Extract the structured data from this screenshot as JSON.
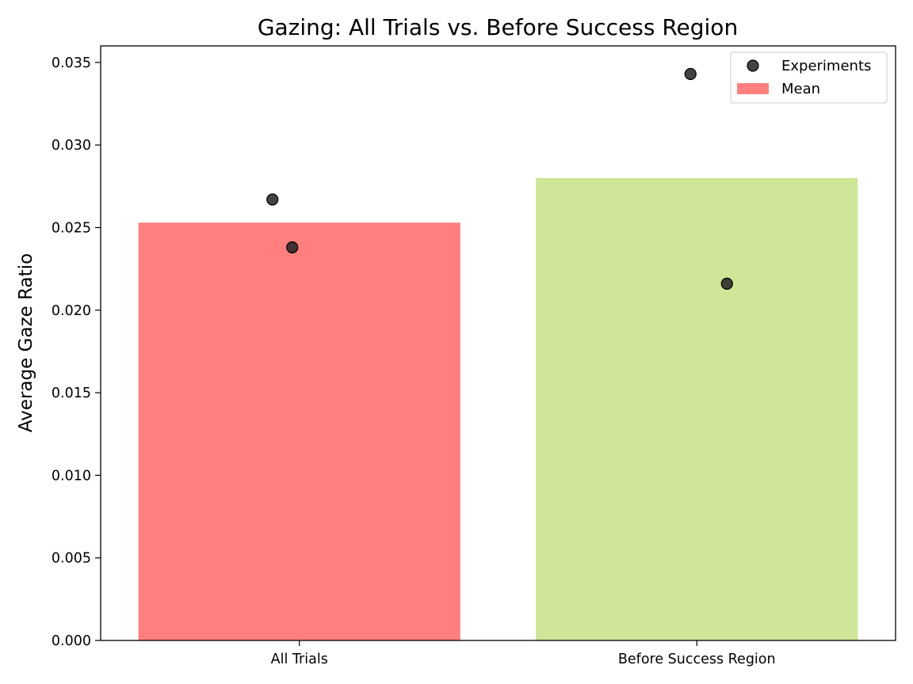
{
  "chart_data": {
    "type": "bar",
    "title": "Gazing: All Trials vs. Before Success Region",
    "xlabel": "",
    "ylabel": "Average Gaze Ratio",
    "categories": [
      "All Trials",
      "Before Success Region"
    ],
    "series": [
      {
        "name": "Mean",
        "values": [
          0.0253,
          0.028
        ]
      }
    ],
    "points": {
      "name": "Experiments",
      "values": [
        [
          0.0267,
          0.0238
        ],
        [
          0.0343,
          0.0216
        ]
      ]
    },
    "bar_colors": [
      "#ff7f7f",
      "#cfe597"
    ],
    "point_color": "#222222",
    "legend_mean_color": "#ff7f7f",
    "ylim": [
      0,
      0.036
    ],
    "yticks": [
      "0.000",
      "0.005",
      "0.010",
      "0.015",
      "0.020",
      "0.025",
      "0.030",
      "0.035"
    ],
    "grid": false,
    "legend_position": "top-right"
  }
}
